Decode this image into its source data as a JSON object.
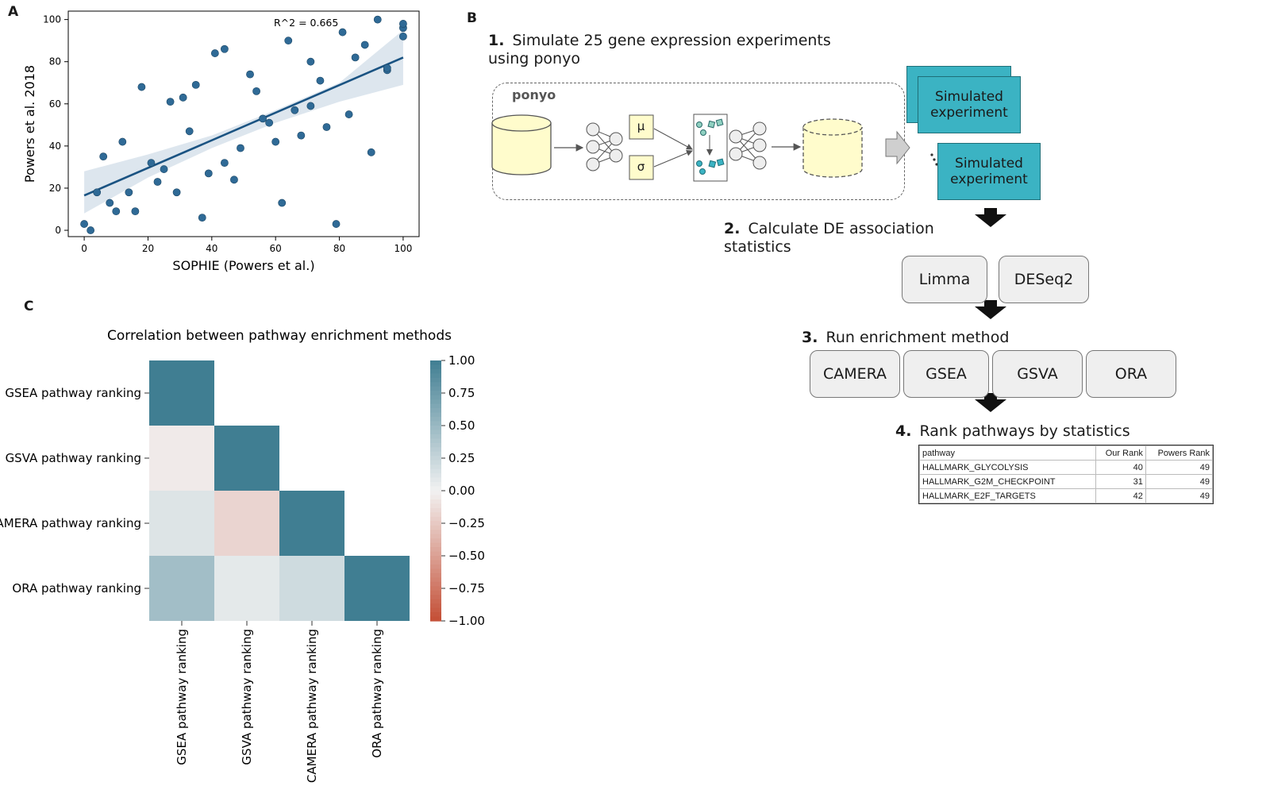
{
  "panels": {
    "a": "A",
    "b": "B",
    "c": "C"
  },
  "colors": {
    "point": "#2f6a96",
    "fit_line": "#1a5382",
    "ci_band": "#d9e3ec",
    "teal": "#3bb3c3",
    "heat_high": "#407e92",
    "heat_low": "#c44e35"
  },
  "chart_data": [
    {
      "type": "scatter",
      "title": "",
      "xlabel": "SOPHIE (Powers et al.)",
      "ylabel": "Powers et al. 2018",
      "xlim": [
        -5,
        105
      ],
      "ylim": [
        -3,
        104
      ],
      "xticks": [
        0,
        20,
        40,
        60,
        80,
        100
      ],
      "yticks": [
        0,
        20,
        40,
        60,
        80,
        100
      ],
      "annotation": "R^2 = 0.665",
      "fit": {
        "x": [
          0,
          100
        ],
        "y": [
          16.5,
          82
        ]
      },
      "ci_band": {
        "x": [
          0,
          20,
          40,
          60,
          80,
          100
        ],
        "lower": [
          8,
          25,
          39,
          51,
          61,
          69
        ],
        "upper": [
          28,
          36,
          45,
          57,
          70,
          95
        ]
      },
      "points": [
        [
          0,
          3
        ],
        [
          2,
          0
        ],
        [
          4,
          18
        ],
        [
          6,
          35
        ],
        [
          8,
          13
        ],
        [
          10,
          9
        ],
        [
          12,
          42
        ],
        [
          14,
          18
        ],
        [
          16,
          9
        ],
        [
          18,
          68
        ],
        [
          21,
          32
        ],
        [
          23,
          23
        ],
        [
          25,
          29
        ],
        [
          27,
          61
        ],
        [
          29,
          18
        ],
        [
          31,
          63
        ],
        [
          33,
          47
        ],
        [
          35,
          69
        ],
        [
          37,
          6
        ],
        [
          39,
          27
        ],
        [
          41,
          84
        ],
        [
          44,
          86
        ],
        [
          44,
          32
        ],
        [
          47,
          24
        ],
        [
          49,
          39
        ],
        [
          52,
          74
        ],
        [
          54,
          66
        ],
        [
          56,
          53
        ],
        [
          58,
          51
        ],
        [
          60,
          42
        ],
        [
          62,
          13
        ],
        [
          64,
          90
        ],
        [
          66,
          57
        ],
        [
          68,
          45
        ],
        [
          71,
          80
        ],
        [
          71,
          59
        ],
        [
          74,
          71
        ],
        [
          76,
          49
        ],
        [
          79,
          3
        ],
        [
          81,
          94
        ],
        [
          83,
          55
        ],
        [
          85,
          82
        ],
        [
          88,
          88
        ],
        [
          90,
          37
        ],
        [
          92,
          100
        ],
        [
          95,
          76
        ],
        [
          95,
          77
        ],
        [
          100,
          92
        ],
        [
          100,
          96
        ],
        [
          100,
          98
        ]
      ]
    },
    {
      "type": "heatmap",
      "title": "Correlation between pathway enrichment methods",
      "rows": [
        "GSEA pathway ranking",
        "GSVA pathway ranking",
        "CAMERA pathway ranking",
        "ORA pathway ranking"
      ],
      "columns": [
        "GSEA pathway ranking",
        "GSVA pathway ranking",
        "CAMERA pathway ranking",
        "ORA pathway ranking"
      ],
      "values": [
        [
          1.0,
          null,
          null,
          null
        ],
        [
          -0.05,
          1.0,
          null,
          null
        ],
        [
          0.12,
          -0.18,
          1.0,
          null
        ],
        [
          0.45,
          0.08,
          0.2,
          1.0
        ]
      ],
      "vmin": -1.0,
      "vmax": 1.0,
      "colorbar_ticks": [
        "1.00",
        "0.75",
        "0.50",
        "0.25",
        "0.00",
        "−0.25",
        "−0.50",
        "−0.75",
        "−1.00"
      ]
    }
  ],
  "workflow": {
    "step1": {
      "num": "1.",
      "text_line1": "Simulate 25 gene expression experiments",
      "text_line2": "using ponyo"
    },
    "ponyo_label": "ponyo",
    "mu": "μ",
    "sigma": "σ",
    "sim_line1": "Simulated",
    "sim_line2": "experiment",
    "step2": {
      "num": "2.",
      "text_line1": "Calculate DE association",
      "text_line2": "statistics"
    },
    "de_methods": [
      "Limma",
      "DESeq2"
    ],
    "step3": {
      "num": "3.",
      "text": "Run enrichment method"
    },
    "enrich_methods": [
      "CAMERA",
      "GSEA",
      "GSVA",
      "ORA"
    ],
    "step4": {
      "num": "4.",
      "text": "Rank pathways by statistics"
    },
    "rank_table": {
      "headers": [
        "pathway",
        "Our Rank",
        "Powers Rank"
      ],
      "rows": [
        [
          "HALLMARK_GLYCOLYSIS",
          "40",
          "49"
        ],
        [
          "HALLMARK_G2M_CHECKPOINT",
          "31",
          "49"
        ],
        [
          "HALLMARK_E2F_TARGETS",
          "42",
          "49"
        ]
      ]
    }
  }
}
